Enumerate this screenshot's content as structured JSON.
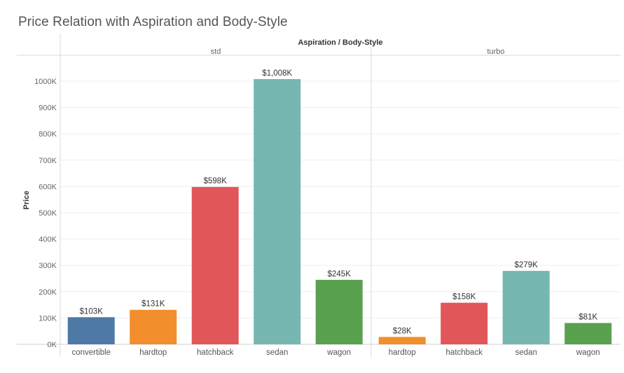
{
  "title": "Price Relation with Aspiration and Body-Style",
  "chart_data": {
    "type": "bar",
    "title": "Price Relation with Aspiration and Body-Style",
    "column_header": "Aspiration / Body-Style",
    "ylabel": "Price",
    "ylim": [
      0,
      1000000
    ],
    "yticks": [
      {
        "value": 0,
        "label": "0K"
      },
      {
        "value": 100000,
        "label": "100K"
      },
      {
        "value": 200000,
        "label": "200K"
      },
      {
        "value": 300000,
        "label": "300K"
      },
      {
        "value": 400000,
        "label": "400K"
      },
      {
        "value": 500000,
        "label": "500K"
      },
      {
        "value": 600000,
        "label": "600K"
      },
      {
        "value": 700000,
        "label": "700K"
      },
      {
        "value": 800000,
        "label": "800K"
      },
      {
        "value": 900000,
        "label": "900K"
      },
      {
        "value": 1000000,
        "label": "1000K"
      }
    ],
    "grid": true,
    "colors": {
      "convertible": "#4e79a7",
      "hardtop": "#f28e2b",
      "hatchback": "#e15759",
      "sedan": "#76b7b2",
      "wagon": "#59a14f"
    },
    "groups": [
      {
        "name": "std",
        "bars": [
          {
            "category": "convertible",
            "value": 103000,
            "label": "$103K"
          },
          {
            "category": "hardtop",
            "value": 131000,
            "label": "$131K"
          },
          {
            "category": "hatchback",
            "value": 598000,
            "label": "$598K"
          },
          {
            "category": "sedan",
            "value": 1008000,
            "label": "$1,008K"
          },
          {
            "category": "wagon",
            "value": 245000,
            "label": "$245K"
          }
        ]
      },
      {
        "name": "turbo",
        "bars": [
          {
            "category": "hardtop",
            "value": 28000,
            "label": "$28K"
          },
          {
            "category": "hatchback",
            "value": 158000,
            "label": "$158K"
          },
          {
            "category": "sedan",
            "value": 279000,
            "label": "$279K"
          },
          {
            "category": "wagon",
            "value": 81000,
            "label": "$81K"
          }
        ]
      }
    ]
  }
}
